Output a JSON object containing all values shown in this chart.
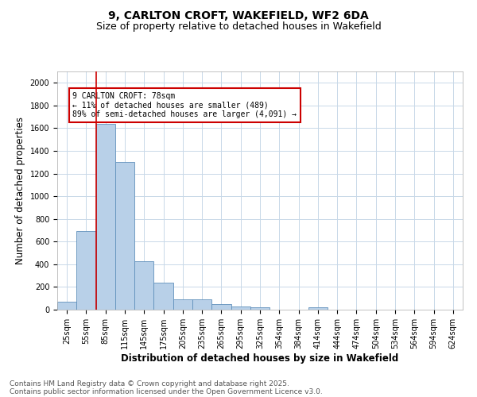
{
  "title_line1": "9, CARLTON CROFT, WAKEFIELD, WF2 6DA",
  "title_line2": "Size of property relative to detached houses in Wakefield",
  "xlabel": "Distribution of detached houses by size in Wakefield",
  "ylabel": "Number of detached properties",
  "categories": [
    "25sqm",
    "55sqm",
    "85sqm",
    "115sqm",
    "145sqm",
    "175sqm",
    "205sqm",
    "235sqm",
    "265sqm",
    "295sqm",
    "325sqm",
    "354sqm",
    "384sqm",
    "414sqm",
    "444sqm",
    "474sqm",
    "504sqm",
    "534sqm",
    "564sqm",
    "594sqm",
    "624sqm"
  ],
  "values": [
    70,
    690,
    1640,
    1300,
    430,
    240,
    90,
    90,
    50,
    30,
    20,
    0,
    0,
    20,
    0,
    0,
    0,
    0,
    0,
    0,
    0
  ],
  "bar_color": "#b8d0e8",
  "bar_edge_color": "#6090bb",
  "vline_color": "#cc0000",
  "vline_x": 1.5,
  "annotation_text": "9 CARLTON CROFT: 78sqm\n← 11% of detached houses are smaller (489)\n89% of semi-detached houses are larger (4,091) →",
  "annotation_box_color": "#ffffff",
  "annotation_box_edge": "#cc0000",
  "ylim": [
    0,
    2100
  ],
  "yticks": [
    0,
    200,
    400,
    600,
    800,
    1000,
    1200,
    1400,
    1600,
    1800,
    2000
  ],
  "background_color": "#ffffff",
  "grid_color": "#c8d8e8",
  "footer_line1": "Contains HM Land Registry data © Crown copyright and database right 2025.",
  "footer_line2": "Contains public sector information licensed under the Open Government Licence v3.0.",
  "title_fontsize": 10,
  "subtitle_fontsize": 9,
  "axis_label_fontsize": 8.5,
  "tick_fontsize": 7,
  "footer_fontsize": 6.5,
  "ann_fontsize": 7
}
